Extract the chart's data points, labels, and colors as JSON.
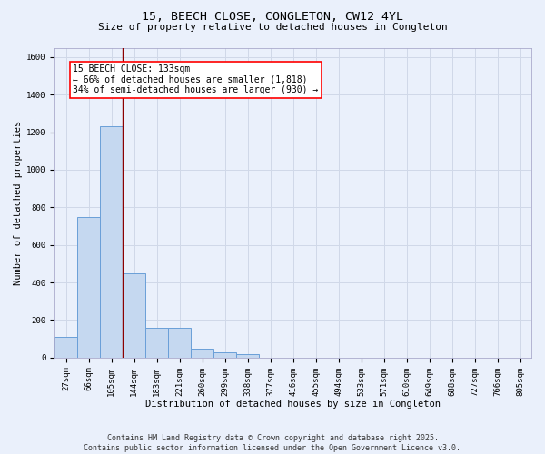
{
  "title_line1": "15, BEECH CLOSE, CONGLETON, CW12 4YL",
  "title_line2": "Size of property relative to detached houses in Congleton",
  "xlabel": "Distribution of detached houses by size in Congleton",
  "ylabel": "Number of detached properties",
  "categories": [
    "27sqm",
    "66sqm",
    "105sqm",
    "144sqm",
    "183sqm",
    "221sqm",
    "260sqm",
    "299sqm",
    "338sqm",
    "377sqm",
    "416sqm",
    "455sqm",
    "494sqm",
    "533sqm",
    "571sqm",
    "610sqm",
    "649sqm",
    "688sqm",
    "727sqm",
    "766sqm",
    "805sqm"
  ],
  "values": [
    110,
    750,
    1230,
    450,
    160,
    160,
    50,
    30,
    20,
    0,
    0,
    0,
    0,
    0,
    0,
    0,
    0,
    0,
    0,
    0,
    0
  ],
  "bar_color": "#c5d8f0",
  "bar_edge_color": "#6a9fd8",
  "grid_color": "#d0d8e8",
  "background_color": "#eaf0fb",
  "annotation_box_text": "15 BEECH CLOSE: 133sqm\n← 66% of detached houses are smaller (1,818)\n34% of semi-detached houses are larger (930) →",
  "red_line_x": 2.5,
  "ylim": [
    0,
    1650
  ],
  "yticks": [
    0,
    200,
    400,
    600,
    800,
    1000,
    1200,
    1400,
    1600
  ],
  "footer_line1": "Contains HM Land Registry data © Crown copyright and database right 2025.",
  "footer_line2": "Contains public sector information licensed under the Open Government Licence v3.0.",
  "title_fontsize": 9.5,
  "subtitle_fontsize": 8.0,
  "axis_label_fontsize": 7.5,
  "tick_fontsize": 6.5,
  "annotation_fontsize": 7.0,
  "footer_fontsize": 6.0
}
